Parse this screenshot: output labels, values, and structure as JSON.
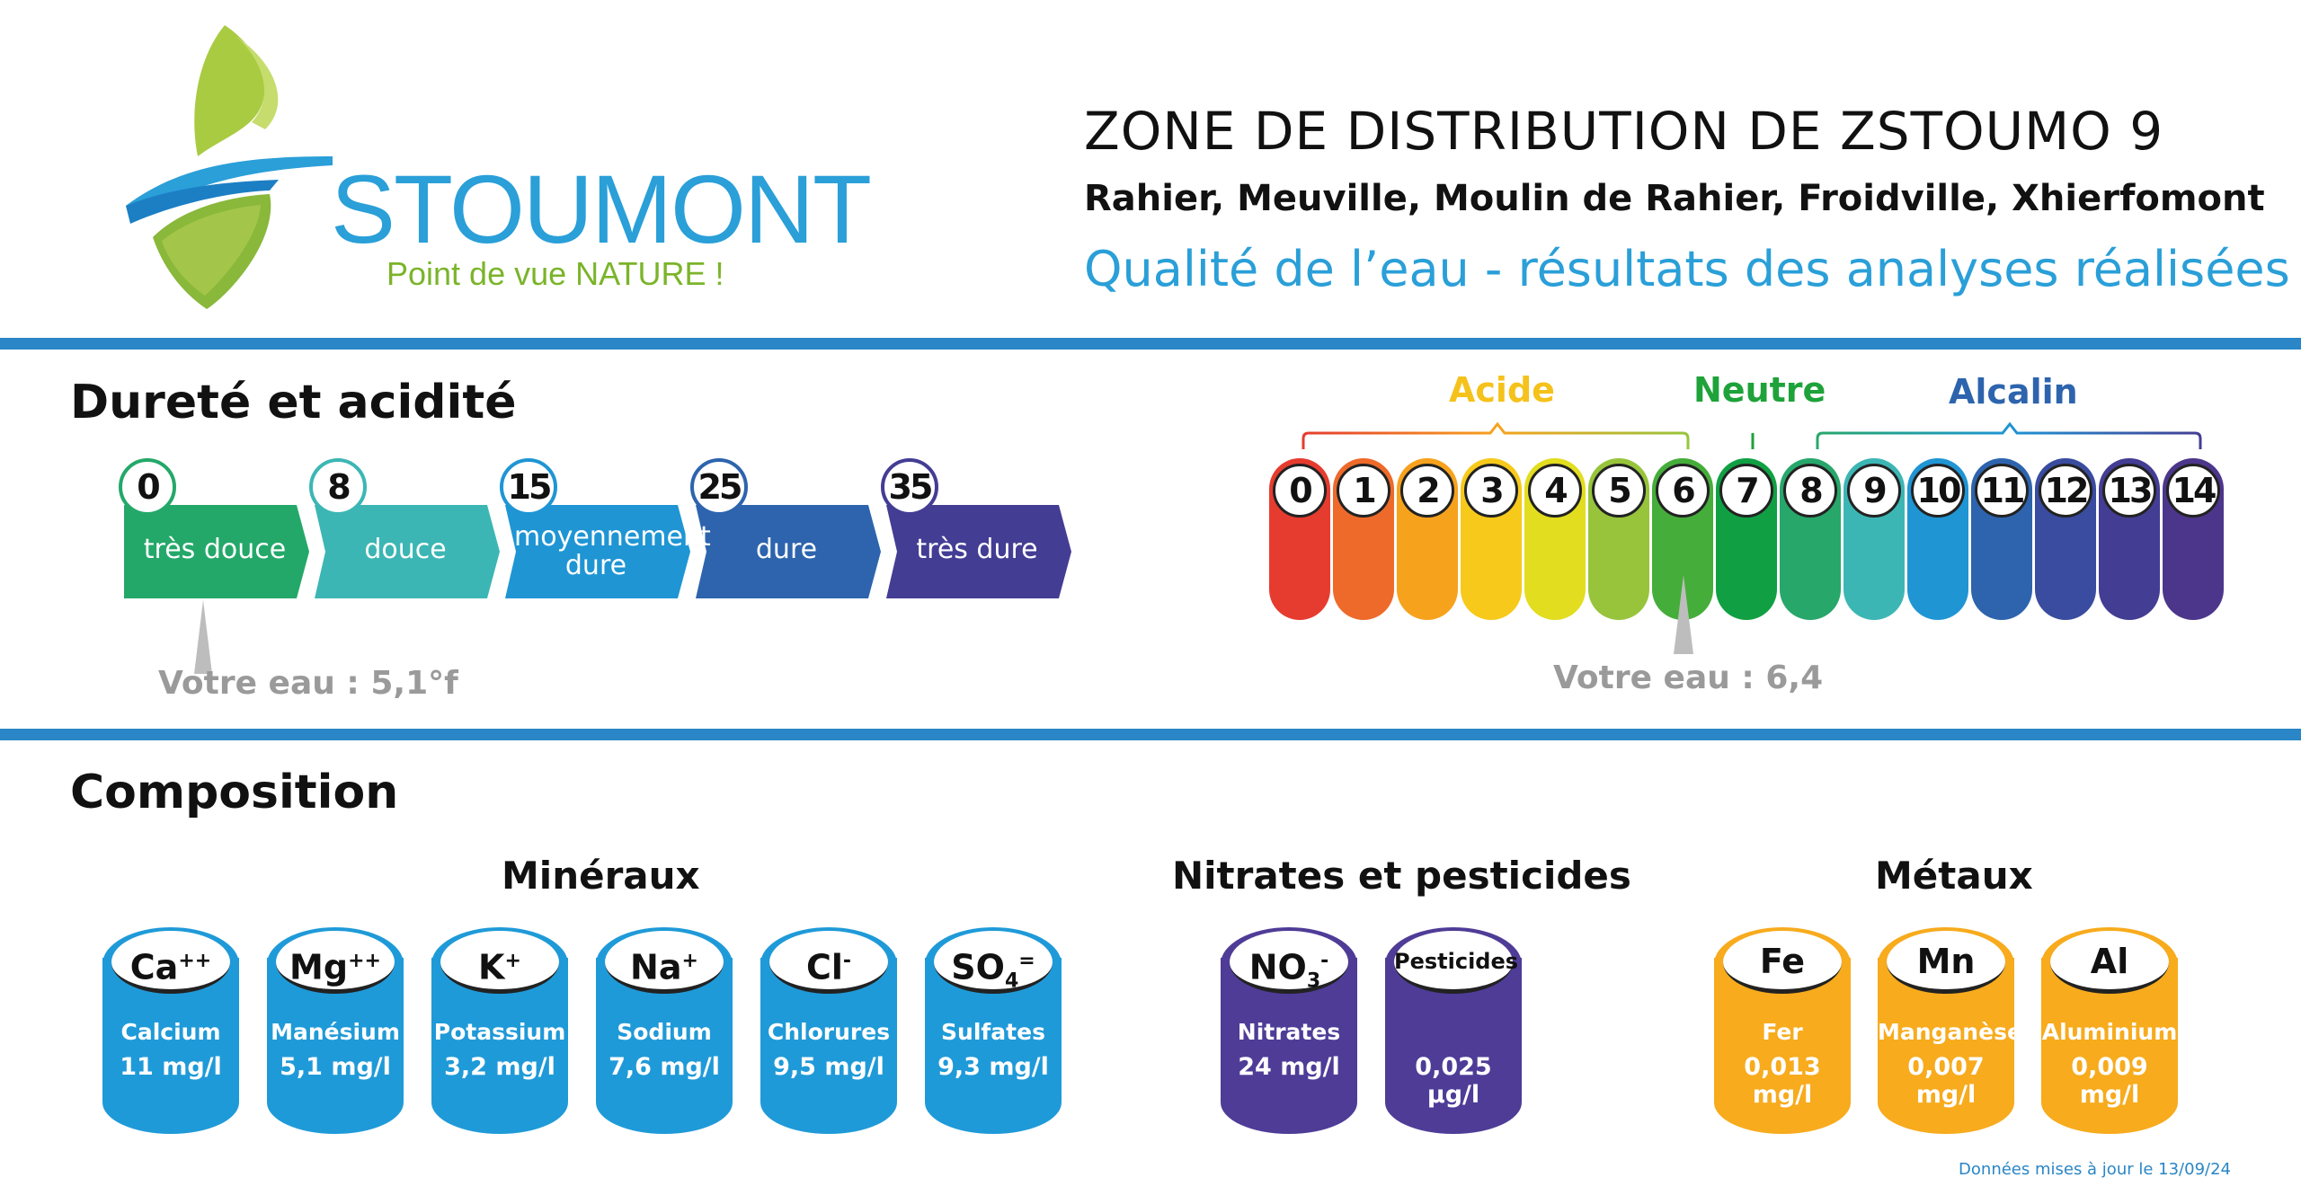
{
  "header": {
    "brand": "STOUMONT",
    "slogan": "Point de vue NATURE !",
    "title": "ZONE DE DISTRIBUTION DE ZSTOUMO 9",
    "villages": "Rahier, Meuville, Moulin de Rahier, Froidville, Xhierfomont",
    "subtitle": "Qualité de l’eau - résultats des analyses réalisées"
  },
  "durete": {
    "title": "Dureté et acidité",
    "levels": [
      {
        "num": "0",
        "label": "très douce",
        "color": "#24a86a"
      },
      {
        "num": "8",
        "label": "douce",
        "color": "#3cb6b4"
      },
      {
        "num": "15",
        "label": "moyennement dure",
        "color": "#1f95d4"
      },
      {
        "num": "25",
        "label": "dure",
        "color": "#2d64ad"
      },
      {
        "num": "35",
        "label": "très dure",
        "color": "#443d94"
      }
    ],
    "your_value_label": "Votre eau : 5,1°f",
    "value_degrees_f": 5.1
  },
  "ph": {
    "categories": {
      "acide": "Acide",
      "neutre": "Neutre",
      "alcalin": "Alcalin"
    },
    "category_colors": {
      "acide": "#f5c21b",
      "neutre": "#1ea23a",
      "alcalin": "#2d64ad"
    },
    "values": [
      "0",
      "1",
      "2",
      "3",
      "4",
      "5",
      "6",
      "7",
      "8",
      "9",
      "10",
      "11",
      "12",
      "13",
      "14"
    ],
    "colors": [
      "#e63c2f",
      "#ee6a2a",
      "#f6a21d",
      "#f7c91a",
      "#e2dd1f",
      "#97c43b",
      "#45ad3a",
      "#10a043",
      "#28a76b",
      "#3cb6b4",
      "#1f95d4",
      "#2d64ad",
      "#3a4c9f",
      "#443d94",
      "#4c368b"
    ],
    "your_value_label": "Votre eau : 6,4",
    "value": 6.4
  },
  "composition": {
    "title": "Composition",
    "groups": [
      {
        "title": "Minéraux",
        "color": "#1f9ad8"
      },
      {
        "title": "Nitrates et pesticides",
        "color": "#4f3c97"
      },
      {
        "title": "Métaux",
        "color": "#f7ab1d"
      }
    ],
    "items": [
      {
        "sym": "Ca",
        "sup": "++",
        "name": "Calcium",
        "value": "11 mg/l"
      },
      {
        "sym": "Mg",
        "sup": "++",
        "name": "Manésium",
        "value": "5,1 mg/l"
      },
      {
        "sym": "K",
        "sup": "+",
        "name": "Potassium",
        "value": "3,2 mg/l"
      },
      {
        "sym": "Na",
        "sup": "+",
        "name": "Sodium",
        "value": "7,6 mg/l"
      },
      {
        "sym": "Cl",
        "sup": "-",
        "name": "Chlorures",
        "value": "9,5 mg/l"
      },
      {
        "sym": "SO",
        "sub": "4",
        "sup": "=",
        "name": "Sulfates",
        "value": "9,3 mg/l"
      },
      {
        "sym": "NO",
        "sub": "3",
        "sup": "-",
        "name": "Nitrates",
        "value": "24 mg/l"
      },
      {
        "sym": "Pesticides",
        "name": "",
        "value": "0,025 µg/l"
      },
      {
        "sym": "Fe",
        "name": "Fer",
        "value": "0,013 mg/l"
      },
      {
        "sym": "Mn",
        "name": "Manganèse",
        "value": "0,007 mg/l"
      },
      {
        "sym": "Al",
        "name": "Aluminium",
        "value": "0,009 mg/l"
      }
    ]
  },
  "footer": "Données mises à jour le 13/09/24"
}
